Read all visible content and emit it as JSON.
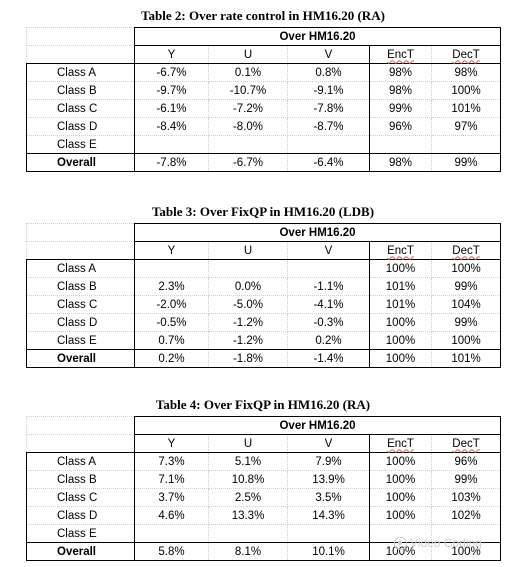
{
  "tables": [
    {
      "caption": "Table 2: Over rate control in HM16.20 (RA)",
      "group_header": "Over HM16.20",
      "columns": [
        "Y",
        "U",
        "V",
        "EncT",
        "DecT"
      ],
      "rows": [
        {
          "label": "Class A",
          "values": [
            "-6.7%",
            "0.1%",
            "0.8%",
            "98%",
            "98%"
          ]
        },
        {
          "label": "Class B",
          "values": [
            "-9.7%",
            "-10.7%",
            "-9.1%",
            "98%",
            "100%"
          ]
        },
        {
          "label": "Class C",
          "values": [
            "-6.1%",
            "-7.2%",
            "-7.8%",
            "99%",
            "101%"
          ]
        },
        {
          "label": "Class D",
          "values": [
            "-8.4%",
            "-8.0%",
            "-8.7%",
            "96%",
            "97%"
          ]
        },
        {
          "label": "Class E",
          "values": [
            "",
            "",
            "",
            "",
            ""
          ]
        }
      ],
      "overall": {
        "label": "Overall",
        "values": [
          "-7.8%",
          "-6.7%",
          "-6.4%",
          "98%",
          "99%"
        ]
      }
    },
    {
      "caption": "Table 3: Over FixQP in HM16.20 (LDB)",
      "group_header": "Over HM16.20",
      "columns": [
        "Y",
        "U",
        "V",
        "EncT",
        "DecT"
      ],
      "rows": [
        {
          "label": "Class A",
          "values": [
            "",
            "",
            "",
            "100%",
            "100%"
          ]
        },
        {
          "label": "Class B",
          "values": [
            "2.3%",
            "0.0%",
            "-1.1%",
            "101%",
            "99%"
          ]
        },
        {
          "label": "Class C",
          "values": [
            "-2.0%",
            "-5.0%",
            "-4.1%",
            "101%",
            "104%"
          ]
        },
        {
          "label": "Class D",
          "values": [
            "-0.5%",
            "-1.2%",
            "-0.3%",
            "100%",
            "99%"
          ]
        },
        {
          "label": "Class E",
          "values": [
            "0.7%",
            "-1.2%",
            "0.2%",
            "100%",
            "100%"
          ]
        }
      ],
      "overall": {
        "label": "Overall",
        "values": [
          "0.2%",
          "-1.8%",
          "-1.4%",
          "100%",
          "101%"
        ]
      }
    },
    {
      "caption": "Table 4: Over FixQP in HM16.20 (RA)",
      "group_header": "Over HM16.20",
      "columns": [
        "Y",
        "U",
        "V",
        "EncT",
        "DecT"
      ],
      "rows": [
        {
          "label": "Class A",
          "values": [
            "7.3%",
            "5.1%",
            "7.9%",
            "100%",
            "96%"
          ]
        },
        {
          "label": "Class B",
          "values": [
            "7.1%",
            "10.8%",
            "13.9%",
            "100%",
            "99%"
          ]
        },
        {
          "label": "Class C",
          "values": [
            "3.7%",
            "2.5%",
            "3.5%",
            "100%",
            "103%"
          ]
        },
        {
          "label": "Class D",
          "values": [
            "4.6%",
            "13.3%",
            "14.3%",
            "100%",
            "102%"
          ]
        },
        {
          "label": "Class E",
          "values": [
            "",
            "",
            "",
            "",
            ""
          ]
        }
      ],
      "overall": {
        "label": "Overall",
        "values": [
          "5.8%",
          "8.1%",
          "10.1%",
          "100%",
          "100%"
        ]
      }
    }
  ],
  "watermark": {
    "text": "Video Coding",
    "icon": "wechat-logo-icon"
  }
}
